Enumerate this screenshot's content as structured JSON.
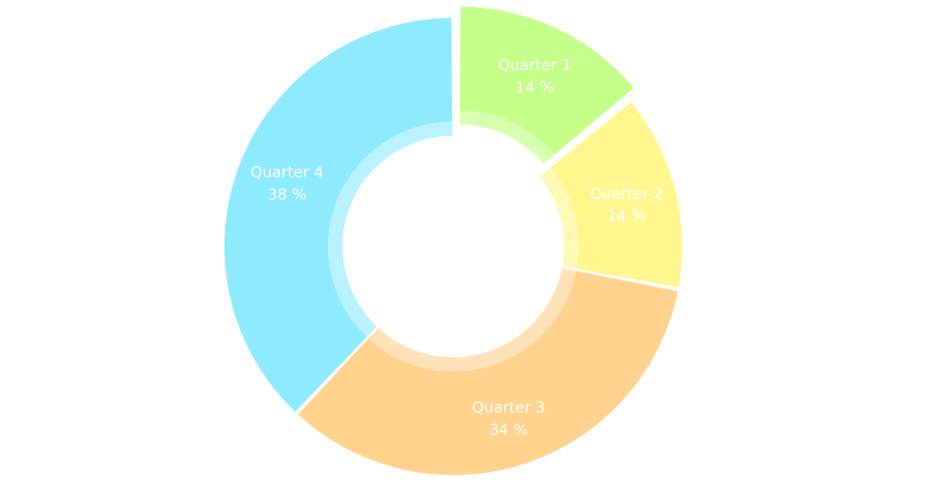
{
  "chart_data": {
    "type": "pie",
    "variant": "donut",
    "slices": [
      {
        "label": "Quarter 1",
        "value": 14,
        "value_label": "14 %",
        "color": "#c5ff8a",
        "inner_color": "#d8ffb0",
        "exploded": true
      },
      {
        "label": "Quarter 2",
        "value": 14,
        "value_label": "14 %",
        "color": "#fff68e",
        "inner_color": "#fff9b8",
        "exploded": false
      },
      {
        "label": "Quarter 3",
        "value": 34,
        "value_label": "34 %",
        "color": "#ffd38e",
        "inner_color": "#ffe2b8",
        "exploded": false
      },
      {
        "label": "Quarter 4",
        "value": 38,
        "value_label": "38 %",
        "color": "#8eebff",
        "inner_color": "#b8f3ff",
        "exploded": false
      }
    ],
    "legend": "none"
  }
}
